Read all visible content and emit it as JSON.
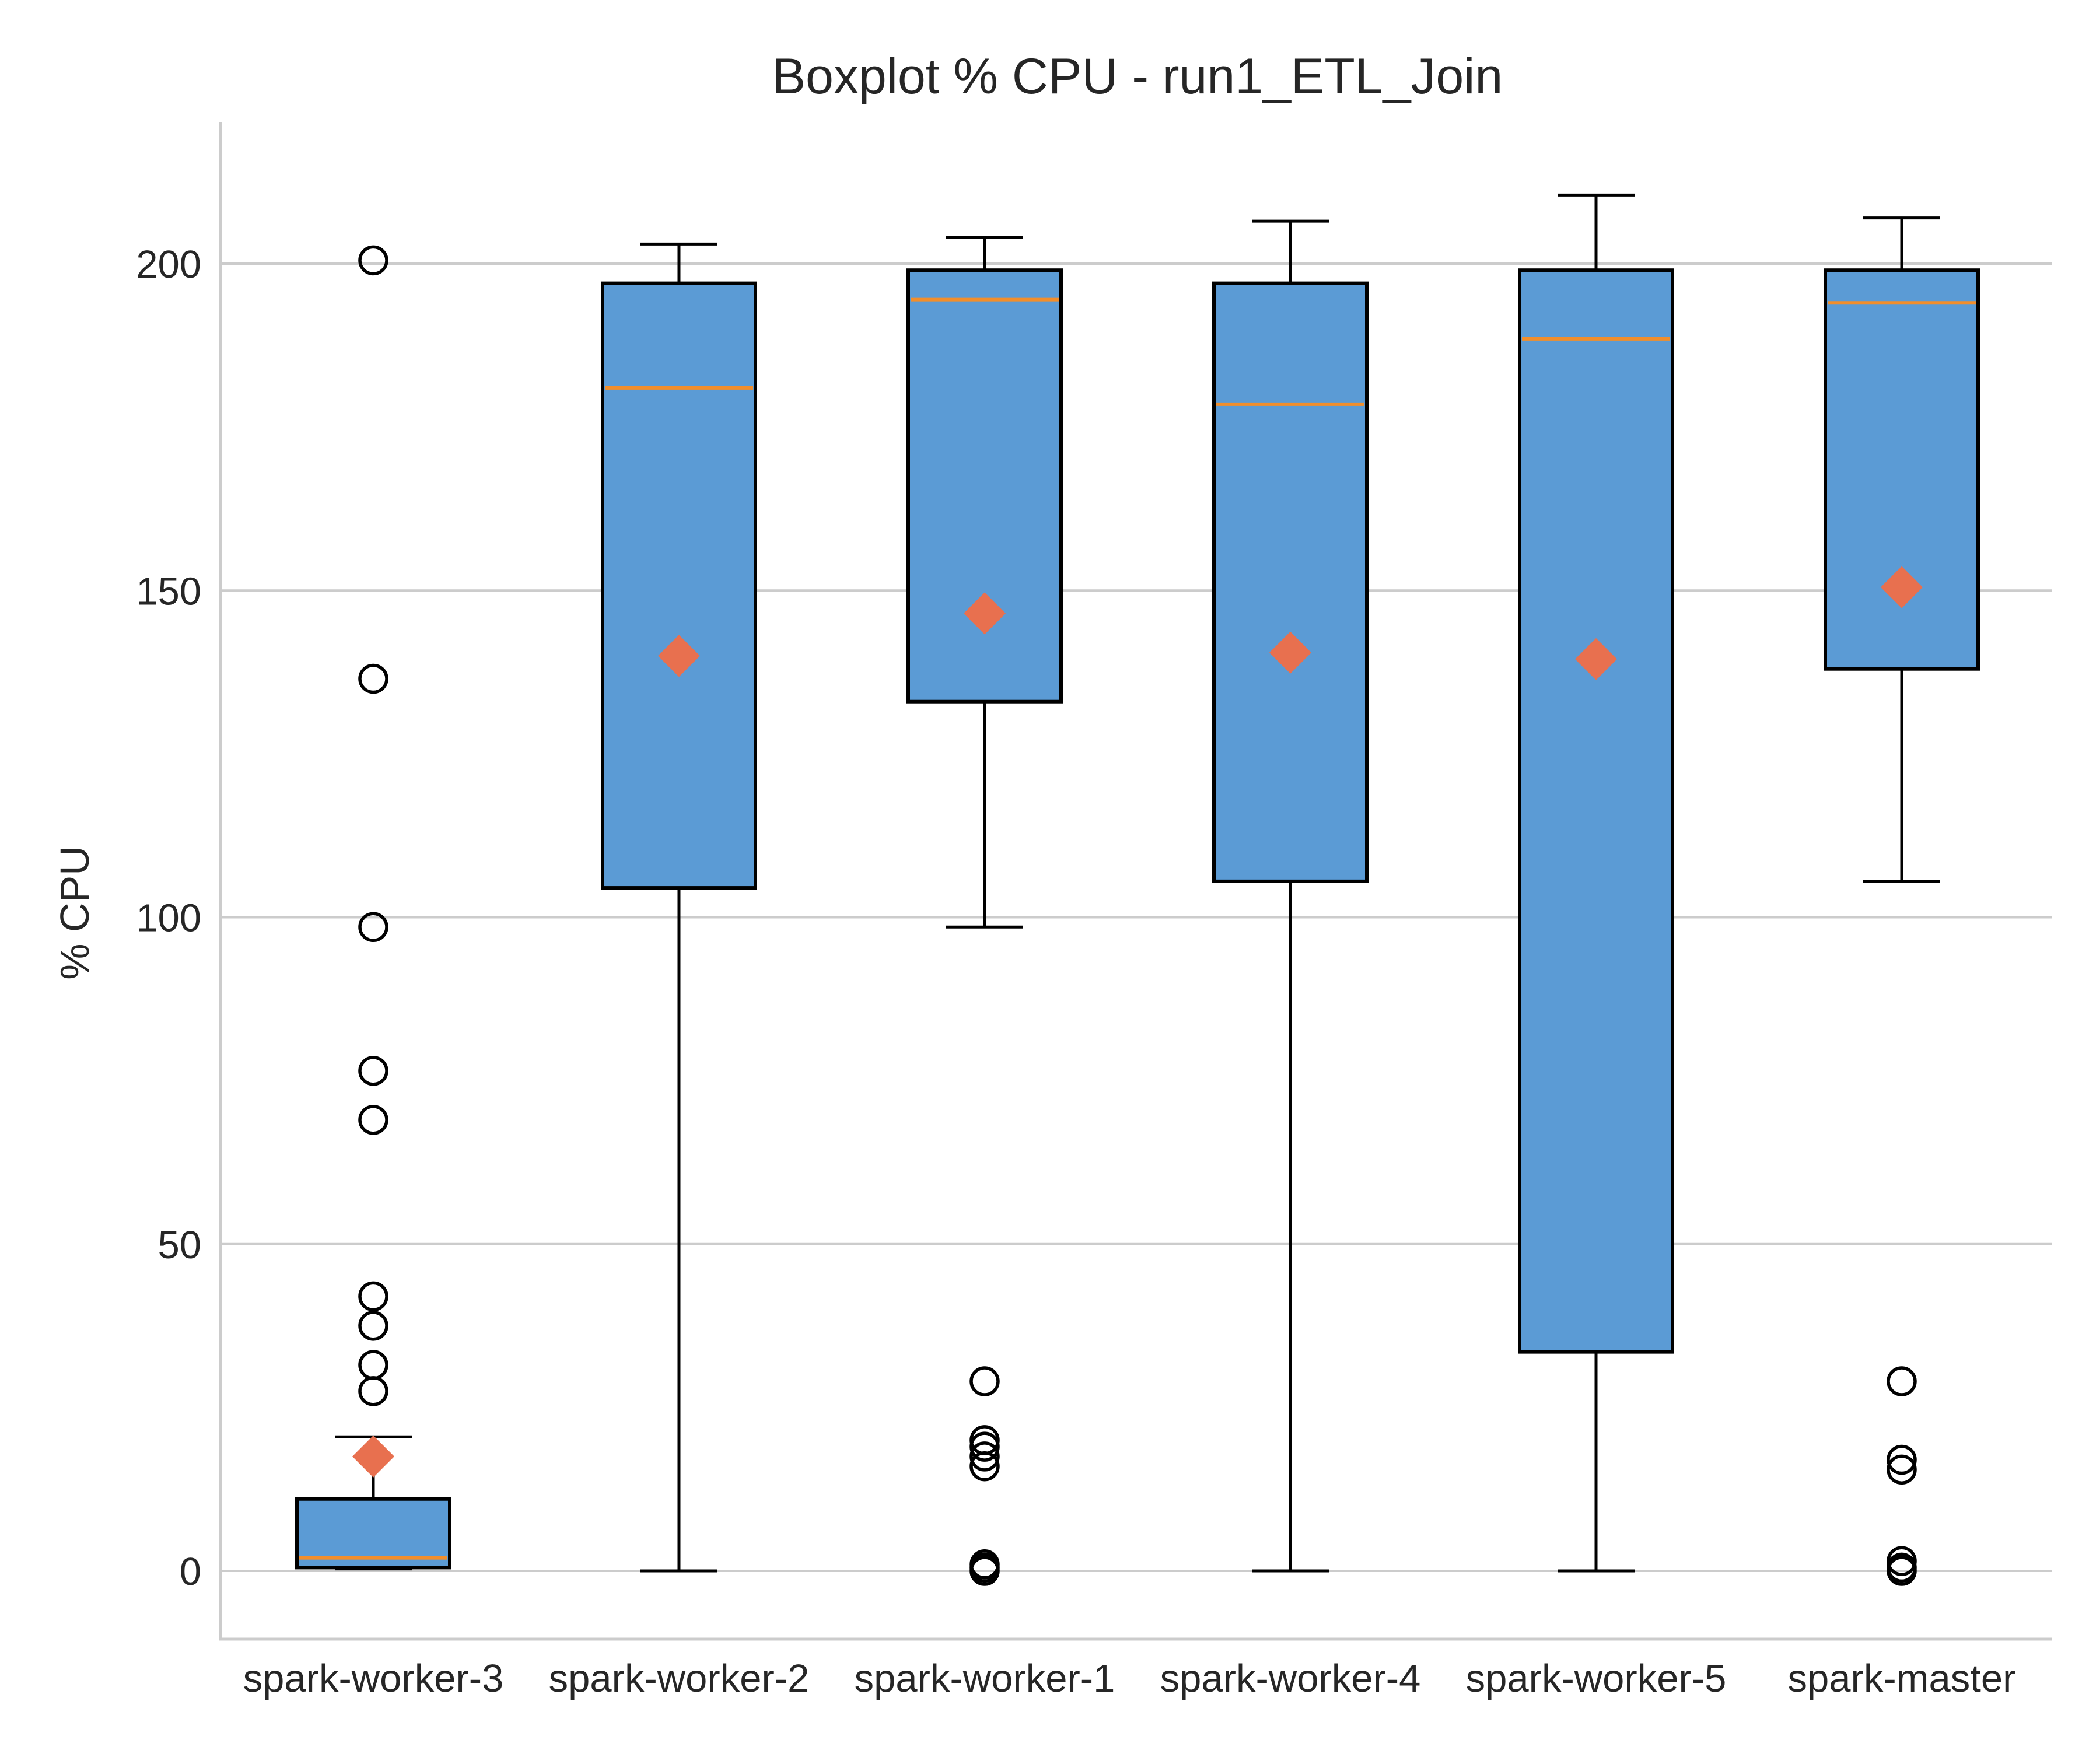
{
  "chart_data": {
    "type": "box",
    "title": "Boxplot % CPU - run1_ETL_Join",
    "xlabel": "",
    "ylabel": "% CPU",
    "ylim": [
      -10,
      220
    ],
    "yticks": [
      0,
      50,
      100,
      150,
      200
    ],
    "grid": "horizontal",
    "colors": {
      "box_fill": "#5b9bd5",
      "box_edge": "#000000",
      "median": "#f28e2b",
      "mean_marker": "#e8704f",
      "flier": "#000000"
    },
    "categories": [
      "spark-worker-3",
      "spark-worker-2",
      "spark-worker-1",
      "spark-worker-4",
      "spark-worker-5",
      "spark-master"
    ],
    "boxes": [
      {
        "name": "spark-worker-3",
        "whisker_low": 0.3,
        "q1": 0.5,
        "median": 2.0,
        "q3": 11.0,
        "whisker_high": 20.5,
        "mean": 17.5,
        "fliers": [
          200.5,
          136.5,
          98.5,
          76.5,
          69.0,
          42.0,
          37.5,
          31.5,
          27.5
        ]
      },
      {
        "name": "spark-worker-2",
        "whisker_low": 0.0,
        "q1": 104.5,
        "median": 181.0,
        "q3": 197.0,
        "whisker_high": 203.0,
        "mean": 140.0,
        "fliers": []
      },
      {
        "name": "spark-worker-1",
        "whisker_low": 98.5,
        "q1": 133.0,
        "median": 194.5,
        "q3": 199.0,
        "whisker_high": 204.0,
        "mean": 146.5,
        "fliers": [
          29.0,
          20.0,
          19.0,
          17.5,
          16.0,
          1.0,
          0.5,
          0.0
        ]
      },
      {
        "name": "spark-worker-4",
        "whisker_low": 0.0,
        "q1": 105.5,
        "median": 178.5,
        "q3": 197.0,
        "whisker_high": 206.5,
        "mean": 140.5,
        "fliers": []
      },
      {
        "name": "spark-worker-5",
        "whisker_low": 0.0,
        "q1": 33.5,
        "median": 188.5,
        "q3": 199.0,
        "whisker_high": 210.5,
        "mean": 139.5,
        "fliers": []
      },
      {
        "name": "spark-master",
        "whisker_low": 105.5,
        "q1": 138.0,
        "median": 194.0,
        "q3": 199.0,
        "whisker_high": 207.0,
        "mean": 150.5,
        "fliers": [
          29.0,
          17.0,
          15.5,
          1.5,
          0.5,
          0.0
        ]
      }
    ]
  }
}
